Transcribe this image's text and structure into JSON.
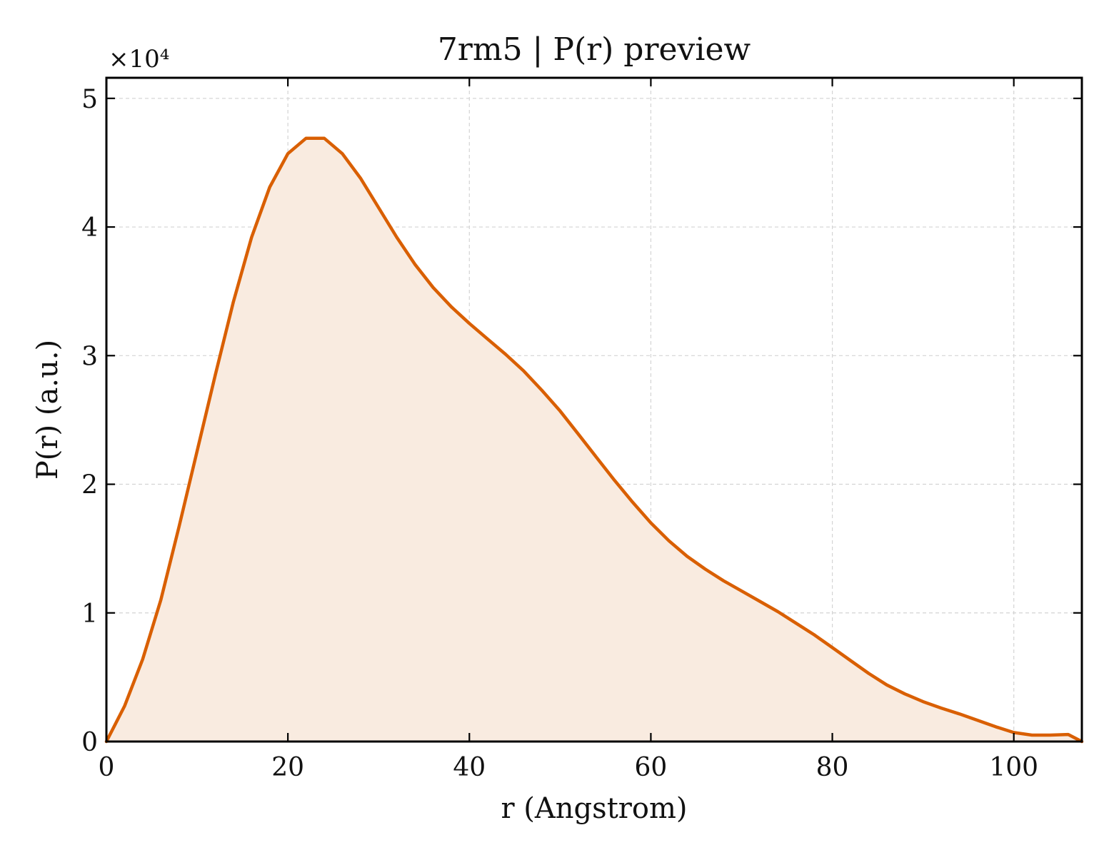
{
  "chart_data": {
    "type": "area",
    "title": "7rm5 | P(r) preview",
    "xlabel": "r (Angstrom)",
    "ylabel": "P(r) (a.u.)",
    "y_multiplier_label": "×10⁴",
    "xlim": [
      0,
      107.5
    ],
    "ylim": [
      0,
      51600
    ],
    "x_ticks": [
      0,
      20,
      40,
      60,
      80,
      100
    ],
    "x_tick_labels": [
      "0",
      "20",
      "40",
      "60",
      "80",
      "100"
    ],
    "y_ticks": [
      0,
      10000,
      20000,
      30000,
      40000,
      50000
    ],
    "y_tick_labels": [
      "0",
      "1",
      "2",
      "3",
      "4",
      "5"
    ],
    "grid": true,
    "legend": "none",
    "series": [
      {
        "color": "#d95f02",
        "fill_color": "#f9ebe0",
        "x": [
          0,
          2,
          4,
          6,
          8,
          10,
          12,
          14,
          16,
          18,
          20,
          22,
          24,
          26,
          28,
          30,
          32,
          34,
          36,
          38,
          40,
          42,
          44,
          46,
          48,
          50,
          52,
          54,
          56,
          58,
          60,
          62,
          64,
          66,
          68,
          70,
          72,
          74,
          76,
          78,
          80,
          82,
          84,
          86,
          88,
          90,
          92,
          94,
          96,
          98,
          100,
          102,
          104,
          106,
          107.5
        ],
        "y": [
          0,
          2750,
          6400,
          11000,
          16700,
          22600,
          28500,
          34200,
          39200,
          43100,
          45700,
          46900,
          46900,
          45700,
          43800,
          41500,
          39200,
          37100,
          35300,
          33800,
          32500,
          31300,
          30100,
          28800,
          27300,
          25700,
          23900,
          22100,
          20300,
          18600,
          17000,
          15600,
          14400,
          13400,
          12500,
          11700,
          10900,
          10100,
          9200,
          8300,
          7300,
          6300,
          5300,
          4400,
          3700,
          3100,
          2600,
          2150,
          1650,
          1150,
          700,
          500,
          500,
          550,
          0
        ]
      }
    ]
  }
}
